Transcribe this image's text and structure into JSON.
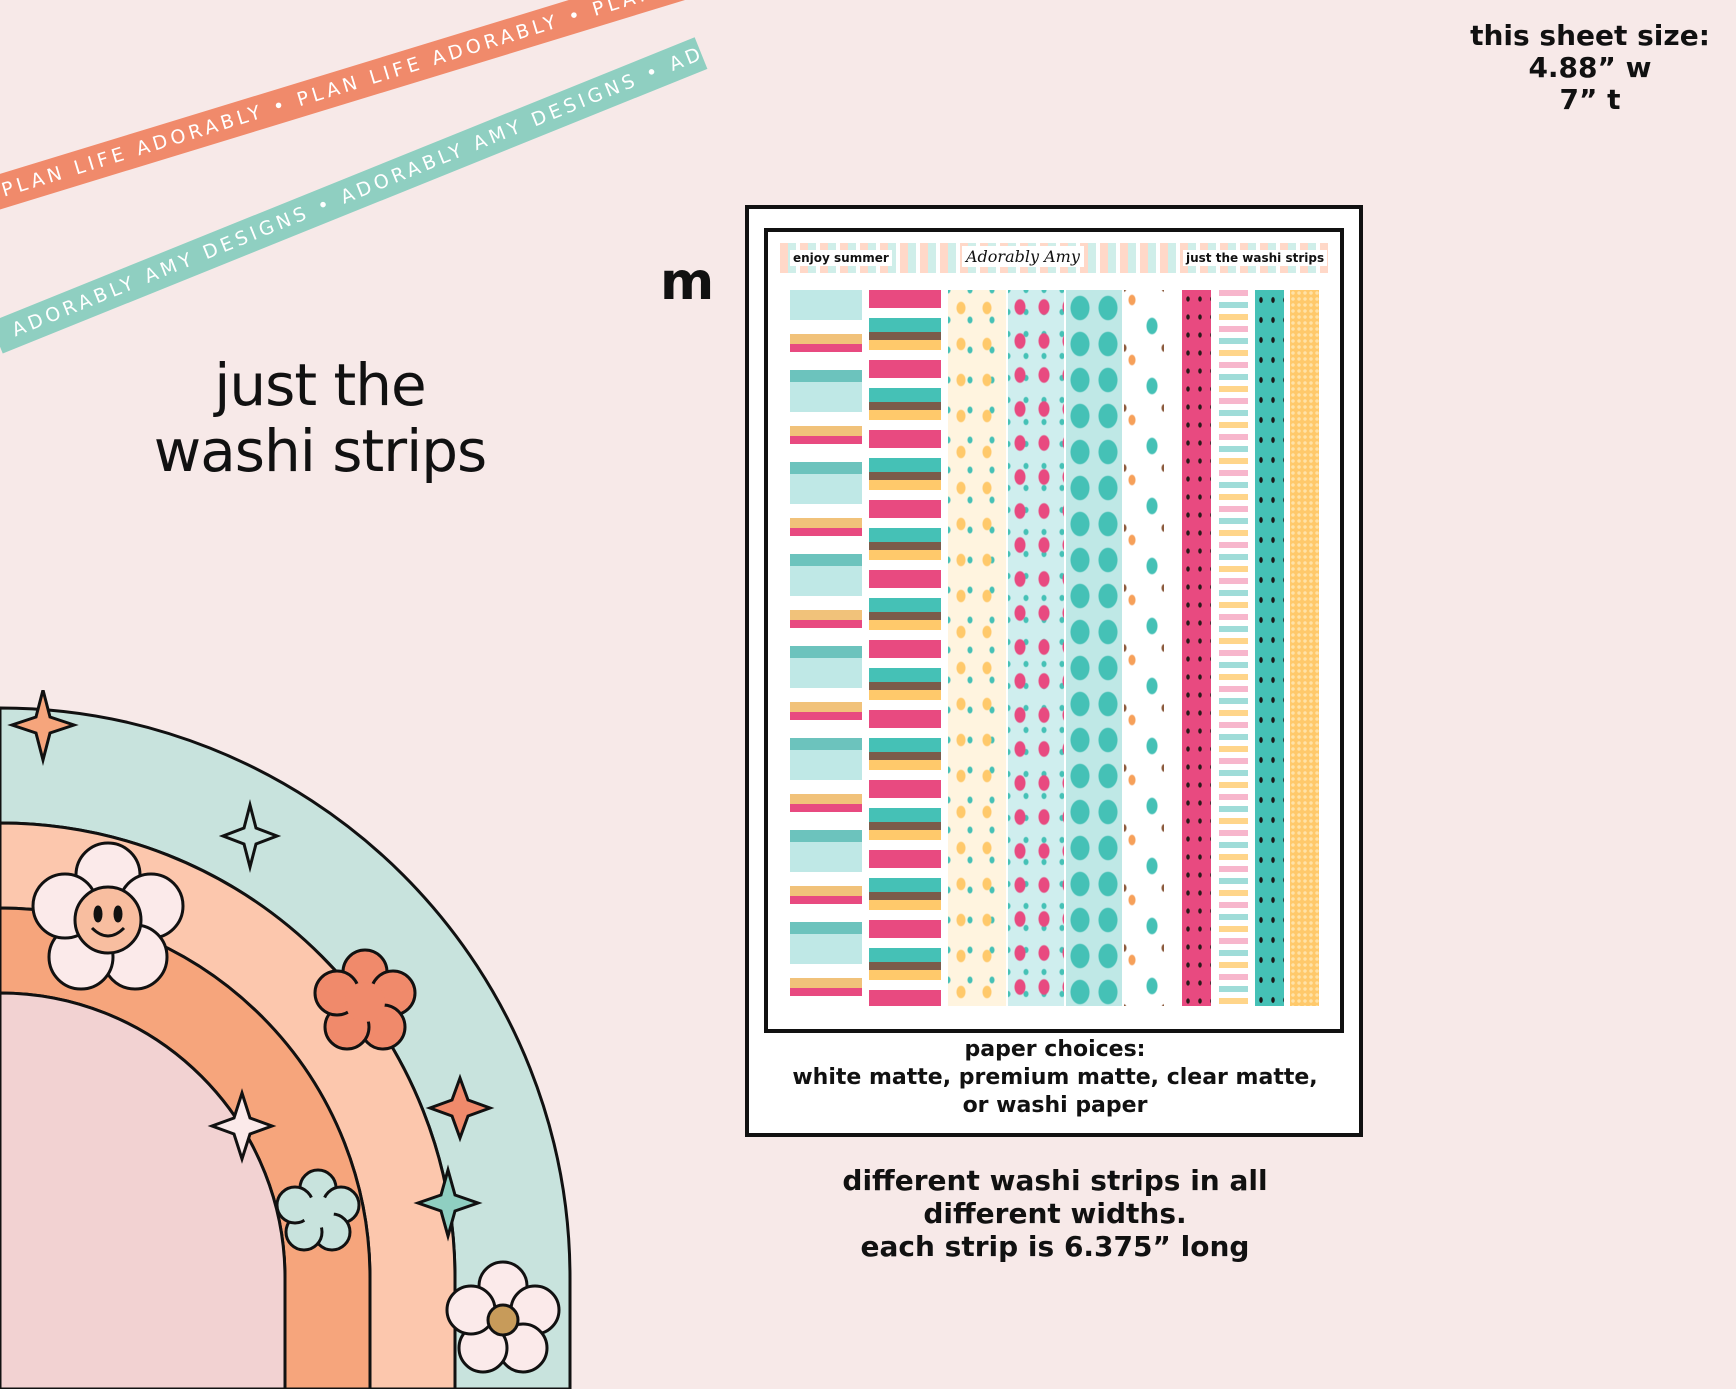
{
  "ribbons": {
    "orange_text": "PLAN LIFE ADORABLY • PLAN LIFE ADORABLY • PLAN LIFE ADORABLY •",
    "teal_text": "ADORABLY AMY DESIGNS • ADORABLY AMY DESIGNS • ADORABLY AMY DESIGNS •"
  },
  "size_info": {
    "line1": "this sheet size:",
    "line2": "4.88” w",
    "line3": "7” t"
  },
  "title": {
    "line1": "just the",
    "line2": "washi strips"
  },
  "size_letter": "m",
  "sheet": {
    "header_left": "enjoy summer",
    "header_center": "Adorably Amy",
    "header_right": "just the washi strips"
  },
  "paper_caption": {
    "line1": "paper choices:",
    "line2": "white matte, premium matte, clear matte,",
    "line3": "or washi paper"
  },
  "bottom_caption": {
    "line1": "different washi strips in all",
    "line2": "different widths.",
    "line3": "each strip is 6.375” long"
  },
  "colors": {
    "background": "#f7e9e8",
    "orange": "#f08a6b",
    "teal": "#8fcfc1",
    "pink": "#e84a80",
    "mint": "#45c1b6",
    "yellow": "#ffc96b",
    "peach": "#fcc7ad"
  }
}
